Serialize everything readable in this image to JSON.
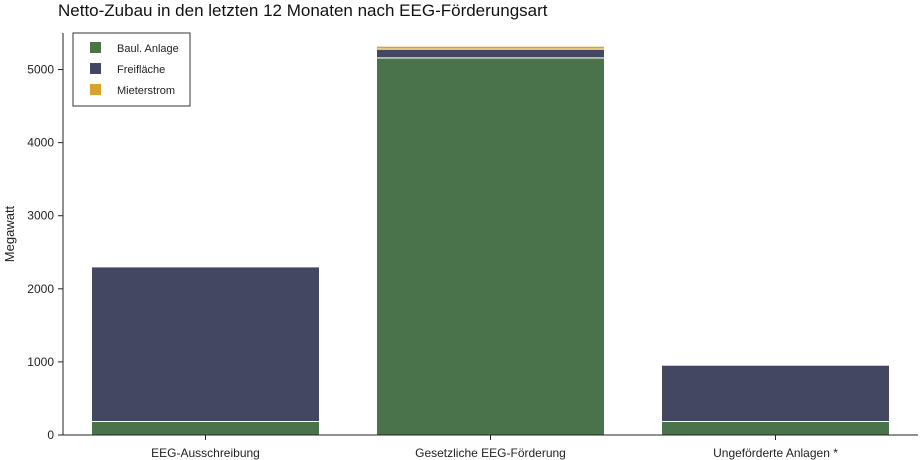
{
  "chart_data": {
    "type": "bar",
    "stacked": true,
    "title": "Netto-Zubau in den letzten 12 Monaten nach EEG-Förderungsart",
    "xlabel": "",
    "ylabel": "Megawatt",
    "categories": [
      "EEG-Ausschreibung",
      "Gesetzliche EEG-Förderung",
      "Ungeförderte Anlagen *"
    ],
    "ylim": [
      0,
      5500
    ],
    "yticks": [
      0,
      1000,
      2000,
      3000,
      4000,
      5000
    ],
    "grid": false,
    "legend_position": "top-left",
    "series": [
      {
        "name": "Baul. Anlage",
        "color": "#4a724b",
        "values": [
          185,
          5160,
          185
        ]
      },
      {
        "name": "Freifläche",
        "color": "#43475f",
        "values": [
          2115,
          120,
          770
        ]
      },
      {
        "name": "Mieterstrom",
        "color": "#d8a22e",
        "values": [
          0,
          40,
          0
        ]
      }
    ]
  }
}
